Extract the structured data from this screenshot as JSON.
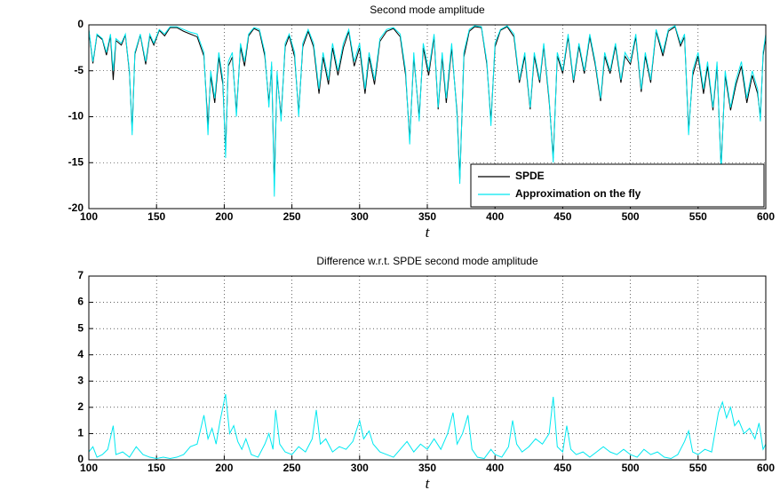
{
  "chart_data": [
    {
      "type": "line",
      "title": "Second mode amplitude",
      "xlabel": "t",
      "xlim": [
        100,
        600
      ],
      "ylim": [
        -20,
        0
      ],
      "xticks": [
        100,
        150,
        200,
        250,
        300,
        350,
        400,
        450,
        500,
        550,
        600
      ],
      "yticks": [
        -20,
        -15,
        -10,
        -5,
        0
      ],
      "grid": true,
      "legend": "lower right",
      "x": [
        100,
        103,
        106,
        110,
        113,
        116,
        118,
        120,
        124,
        127,
        130,
        132,
        134,
        138,
        142,
        145,
        148,
        152,
        156,
        160,
        165,
        170,
        175,
        180,
        185,
        188,
        190,
        193,
        196,
        199,
        201,
        203,
        206,
        209,
        212,
        215,
        218,
        222,
        226,
        230,
        233,
        235,
        237,
        239,
        242,
        245,
        248,
        252,
        255,
        258,
        262,
        266,
        270,
        273,
        277,
        280,
        284,
        288,
        292,
        296,
        300,
        304,
        307,
        311,
        315,
        320,
        325,
        330,
        334,
        337,
        340,
        344,
        347,
        351,
        355,
        358,
        361,
        364,
        368,
        372,
        374,
        377,
        381,
        385,
        390,
        394,
        397,
        400,
        404,
        409,
        414,
        418,
        422,
        426,
        429,
        433,
        436,
        440,
        443,
        446,
        450,
        454,
        458,
        462,
        466,
        470,
        474,
        478,
        481,
        485,
        489,
        493,
        496,
        500,
        504,
        508,
        511,
        515,
        519,
        524,
        528,
        533,
        537,
        540,
        543,
        546,
        550,
        554,
        557,
        561,
        564,
        567,
        570,
        574,
        578,
        582,
        586,
        590,
        594,
        596,
        598,
        600
      ],
      "series": [
        {
          "name": "SPDE",
          "color": "#000000",
          "values": [
            -0.6,
            -4.2,
            -1.1,
            -1.6,
            -3.3,
            -1.2,
            -6,
            -1.7,
            -2.2,
            -1.1,
            -5.2,
            -11.5,
            -3.2,
            -1.1,
            -4.3,
            -1.2,
            -2.2,
            -0.6,
            -1.2,
            -0.3,
            -0.3,
            -0.7,
            -1,
            -1.3,
            -3.4,
            -11,
            -5.5,
            -8.5,
            -3.5,
            -6.5,
            -13.8,
            -4.5,
            -3.5,
            -9.5,
            -2.4,
            -4.5,
            -1.2,
            -0.4,
            -0.7,
            -3.4,
            -8.5,
            -4.5,
            -17.5,
            -5.5,
            -10,
            -2.4,
            -1.2,
            -3.5,
            -9.6,
            -2.4,
            -0.7,
            -2.4,
            -7.5,
            -3.5,
            -6.5,
            -2.5,
            -5.5,
            -2.5,
            -0.7,
            -4.5,
            -2.5,
            -7.5,
            -3.5,
            -6.5,
            -1.8,
            -0.7,
            -0.4,
            -1.3,
            -5.5,
            -12.5,
            -3.5,
            -10,
            -2.5,
            -5.5,
            -1.3,
            -9.2,
            -3.5,
            -8.5,
            -2.5,
            -9.6,
            -16.8,
            -3.5,
            -0.7,
            -0.2,
            -0.3,
            -4.3,
            -10.5,
            -2.4,
            -0.6,
            -0.2,
            -1.3,
            -6.3,
            -3.4,
            -9.2,
            -3.4,
            -6.3,
            -2.3,
            -8.3,
            -14.5,
            -3.4,
            -5.3,
            -1.3,
            -6.3,
            -2.3,
            -5.3,
            -1.3,
            -4.3,
            -8.3,
            -3.4,
            -5.3,
            -2.3,
            -6.3,
            -3.4,
            -4.3,
            -1.3,
            -7.3,
            -3.4,
            -6.3,
            -0.7,
            -3.4,
            -0.7,
            -0.2,
            -2.3,
            -1.3,
            -11.5,
            -5.5,
            -3.4,
            -7.5,
            -4.5,
            -9.3,
            -4.5,
            -15.5,
            -5.5,
            -9.3,
            -6.5,
            -4.5,
            -8.5,
            -5.5,
            -7.5,
            -10,
            -3.4,
            -1.2
          ]
        },
        {
          "name": "Approximation on the fly",
          "color": "#00e8f0",
          "values": [
            -0.5,
            -4,
            -1,
            -1.5,
            -3,
            -1,
            -5,
            -1.5,
            -2,
            -1,
            -5,
            -12,
            -3,
            -1,
            -4,
            -1,
            -2,
            -0.5,
            -1,
            -0.2,
            -0.2,
            -0.5,
            -0.8,
            -1,
            -3,
            -12,
            -5,
            -8,
            -3,
            -6,
            -14.5,
            -4,
            -3,
            -10,
            -2,
            -4,
            -1,
            -0.3,
            -0.5,
            -3,
            -9,
            -4,
            -18.7,
            -5,
            -10.5,
            -2,
            -1,
            -3,
            -10,
            -2,
            -0.5,
            -2,
            -7,
            -3,
            -6,
            -2,
            -5,
            -2,
            -0.5,
            -4,
            -2,
            -7,
            -3,
            -6,
            -1.5,
            -0.5,
            -0.3,
            -1,
            -5,
            -13,
            -3,
            -10.5,
            -2,
            -5,
            -1,
            -9,
            -3,
            -8,
            -2,
            -10,
            -17.3,
            -3,
            -0.5,
            -0.1,
            -0.2,
            -4,
            -11,
            -2,
            -0.5,
            -0.1,
            -1,
            -6,
            -3,
            -9,
            -3,
            -6,
            -2,
            -8,
            -15,
            -3,
            -5,
            -1,
            -6,
            -2,
            -5,
            -1,
            -4,
            -8,
            -3,
            -5,
            -2,
            -6,
            -3,
            -4,
            -1,
            -7,
            -3,
            -6,
            -0.5,
            -3,
            -0.5,
            -0.1,
            -2,
            -1,
            -12,
            -5,
            -3,
            -7,
            -4,
            -9,
            -4,
            -16,
            -5,
            -9,
            -6,
            -4,
            -8,
            -5,
            -7,
            -10.5,
            -3,
            -1
          ]
        }
      ]
    },
    {
      "type": "line",
      "title": "Difference w.r.t. SPDE second mode amplitude",
      "xlabel": "t",
      "xlim": [
        100,
        600
      ],
      "ylim": [
        0,
        7
      ],
      "xticks": [
        100,
        150,
        200,
        250,
        300,
        350,
        400,
        450,
        500,
        550,
        600
      ],
      "yticks": [
        0,
        1,
        2,
        3,
        4,
        5,
        6,
        7
      ],
      "grid": true,
      "x": [
        100,
        103,
        106,
        110,
        114,
        118,
        120,
        125,
        130,
        135,
        140,
        145,
        150,
        155,
        160,
        165,
        170,
        175,
        180,
        185,
        188,
        191,
        194,
        197,
        201,
        204,
        207,
        210,
        213,
        216,
        220,
        225,
        230,
        233,
        236,
        238,
        241,
        245,
        250,
        255,
        260,
        265,
        268,
        271,
        275,
        280,
        285,
        290,
        295,
        300,
        303,
        307,
        310,
        315,
        320,
        325,
        330,
        335,
        340,
        345,
        350,
        355,
        360,
        365,
        369,
        372,
        376,
        380,
        383,
        387,
        392,
        397,
        400,
        405,
        410,
        413,
        416,
        420,
        425,
        430,
        435,
        440,
        443,
        446,
        450,
        453,
        456,
        460,
        465,
        470,
        475,
        480,
        485,
        490,
        495,
        500,
        505,
        510,
        515,
        520,
        525,
        530,
        535,
        540,
        543,
        546,
        550,
        555,
        560,
        565,
        568,
        571,
        574,
        577,
        580,
        584,
        588,
        592,
        595,
        598,
        600
      ],
      "series": [
        {
          "color": "#00e8f0",
          "values": [
            0.3,
            0.5,
            0.1,
            0.2,
            0.4,
            1.3,
            0.2,
            0.3,
            0.1,
            0.5,
            0.2,
            0.1,
            0.05,
            0.1,
            0.05,
            0.1,
            0.2,
            0.5,
            0.6,
            1.7,
            0.8,
            1.2,
            0.6,
            1.5,
            2.5,
            1.0,
            1.3,
            0.7,
            0.4,
            0.8,
            0.2,
            0.1,
            0.6,
            1.0,
            0.4,
            1.9,
            0.6,
            0.3,
            0.2,
            0.5,
            0.3,
            0.8,
            1.9,
            0.6,
            0.8,
            0.3,
            0.5,
            0.4,
            0.7,
            1.5,
            0.8,
            1.1,
            0.6,
            0.3,
            0.2,
            0.1,
            0.4,
            0.7,
            0.3,
            0.6,
            0.4,
            0.8,
            0.4,
            1.0,
            1.8,
            0.6,
            1.0,
            1.7,
            0.4,
            0.1,
            0.05,
            0.4,
            0.2,
            0.1,
            0.5,
            1.5,
            0.6,
            0.3,
            0.5,
            0.8,
            0.6,
            1.0,
            2.4,
            0.5,
            0.3,
            1.3,
            0.4,
            0.2,
            0.3,
            0.1,
            0.3,
            0.5,
            0.3,
            0.2,
            0.4,
            0.2,
            0.1,
            0.4,
            0.2,
            0.3,
            0.1,
            0.05,
            0.2,
            0.7,
            1.1,
            0.3,
            0.2,
            0.4,
            0.3,
            1.8,
            2.2,
            1.6,
            2.0,
            1.3,
            1.5,
            1.0,
            1.2,
            0.8,
            1.4,
            0.4,
            0.6
          ]
        }
      ]
    }
  ]
}
